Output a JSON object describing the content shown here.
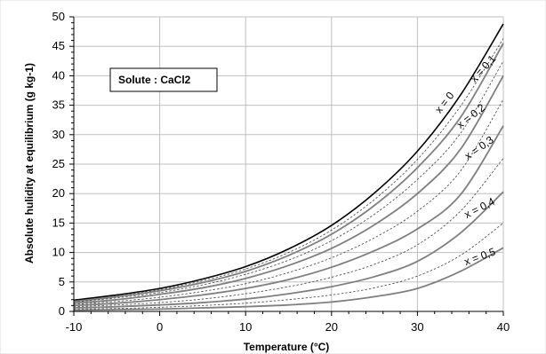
{
  "chart_data": {
    "type": "line",
    "xlabel": "Temperature (°C)",
    "ylabel": "Absolute hulidity at equilibrium  (g  kg-1)",
    "xlim": [
      -10,
      40
    ],
    "ylim": [
      0,
      50
    ],
    "xticks": [
      -10,
      0,
      10,
      20,
      30,
      40
    ],
    "yticks": [
      0,
      5,
      10,
      15,
      20,
      25,
      30,
      35,
      40,
      45,
      50
    ],
    "grid": true,
    "annotation": "Solute : CaCl2",
    "x": [
      -10,
      -5,
      0,
      5,
      10,
      15,
      20,
      25,
      30,
      35,
      40
    ],
    "series": [
      {
        "name": "x = 0",
        "style": "solid-black",
        "values": [
          1.9,
          2.8,
          3.9,
          5.5,
          7.6,
          10.6,
          14.6,
          20.1,
          27.2,
          36.7,
          48.8
        ]
      },
      {
        "name": "",
        "style": "dotted",
        "values": [
          1.8,
          2.6,
          3.7,
          5.2,
          7.2,
          10.0,
          13.8,
          19.0,
          25.8,
          34.8,
          46.3
        ]
      },
      {
        "name": "x = 0,1",
        "style": "solid-gray",
        "values": [
          1.7,
          2.5,
          3.5,
          4.9,
          6.8,
          9.5,
          13.1,
          18.0,
          24.4,
          32.9,
          45.5
        ]
      },
      {
        "name": "",
        "style": "dotted",
        "values": [
          1.6,
          2.3,
          3.2,
          4.5,
          6.3,
          8.7,
          12.0,
          16.5,
          22.4,
          30.2,
          42.5
        ]
      },
      {
        "name": "x = 0,2",
        "style": "solid-gray",
        "values": [
          1.4,
          2.0,
          2.9,
          4.0,
          5.6,
          7.8,
          10.7,
          14.7,
          20.0,
          27.5,
          40.0
        ]
      },
      {
        "name": "",
        "style": "dotted",
        "values": [
          1.2,
          1.7,
          2.4,
          3.4,
          4.7,
          6.6,
          9.1,
          12.5,
          17.0,
          23.8,
          36.0
        ]
      },
      {
        "name": "x = 0,3",
        "style": "solid-gray",
        "values": [
          1.0,
          1.4,
          2.0,
          2.8,
          3.9,
          5.4,
          7.5,
          10.3,
          14.0,
          19.8,
          31.5
        ]
      },
      {
        "name": "",
        "style": "dotted",
        "values": [
          0.8,
          1.1,
          1.5,
          2.1,
          3.0,
          4.2,
          5.8,
          8.0,
          11.3,
          17.0,
          26.0
        ]
      },
      {
        "name": "x = 0,4",
        "style": "solid-gray",
        "values": [
          0.6,
          0.8,
          1.1,
          1.5,
          2.1,
          3.0,
          4.2,
          5.9,
          8.5,
          13.3,
          20.3
        ]
      },
      {
        "name": "",
        "style": "dotted",
        "values": [
          0.4,
          0.5,
          0.7,
          1.0,
          1.4,
          2.0,
          2.8,
          4.0,
          6.0,
          9.5,
          15.0
        ]
      },
      {
        "name": "x = 0,5",
        "style": "solid-gray",
        "values": [
          0.2,
          0.3,
          0.4,
          0.6,
          0.8,
          1.1,
          1.6,
          2.5,
          3.9,
          6.8,
          10.8
        ]
      }
    ]
  }
}
